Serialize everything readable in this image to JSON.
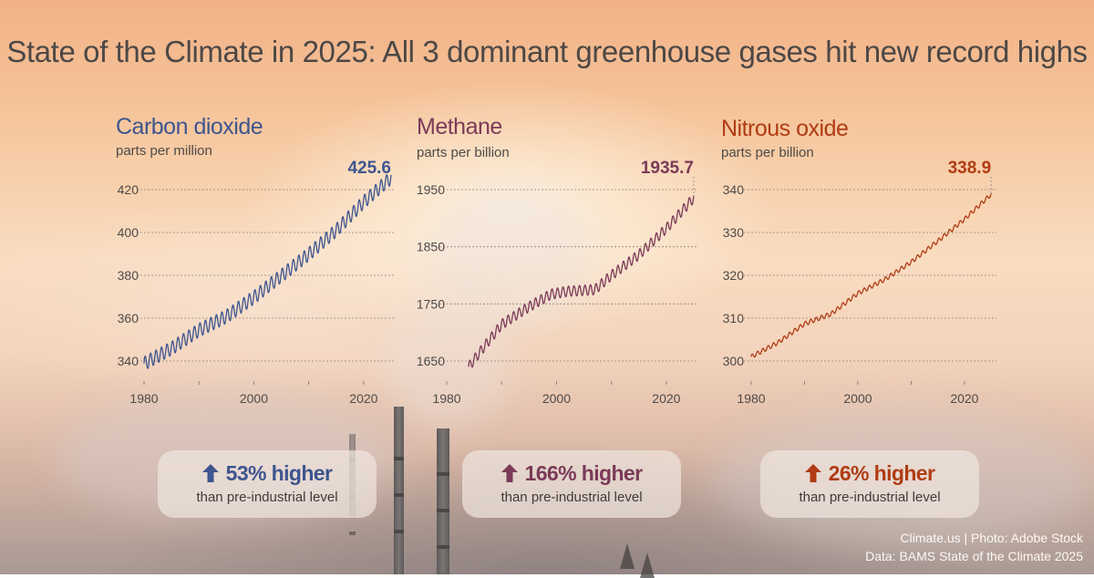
{
  "title": "State of the Climate in 2025: All 3 dominant greenhouse gases hit new record highs",
  "colors": {
    "co2": "#3e558f",
    "ch4": "#7b3a58",
    "n2o": "#b03c14",
    "grid": "#8a8480",
    "axis_text": "#4f4a48"
  },
  "chart_data": [
    {
      "type": "line",
      "title": "Carbon dioxide",
      "ylabel": "parts per million",
      "latest_label": "425.6",
      "xlim": [
        1980,
        2025.5
      ],
      "ylim": [
        336,
        428
      ],
      "xticks": [
        1980,
        2000,
        2020
      ],
      "yticks": [
        340,
        360,
        380,
        400,
        420
      ],
      "grid": true,
      "x": [
        1980,
        1985,
        1990,
        1995,
        2000,
        2005,
        2010,
        2015,
        2020,
        2025
      ],
      "y": [
        338.8,
        345.9,
        354.4,
        360.8,
        369.7,
        379.8,
        389.9,
        401.0,
        414.2,
        425.6
      ],
      "seasonal_amplitude": 3.2,
      "stats": {
        "direction": "up",
        "headline": "53% higher",
        "subtext": "than pre-industrial level",
        "icon": "up-arrow-icon"
      }
    },
    {
      "type": "line",
      "title": "Methane",
      "ylabel": "parts per billion",
      "latest_label": "1935.7",
      "xlim": [
        1980,
        2025.5
      ],
      "ylim": [
        1620,
        1975
      ],
      "xticks": [
        1980,
        2000,
        2020
      ],
      "yticks": [
        1650,
        1750,
        1850,
        1950
      ],
      "grid": true,
      "x": [
        1984,
        1986,
        1990,
        1995,
        1999,
        2002,
        2007,
        2010,
        2015,
        2020,
        2025
      ],
      "y": [
        1640,
        1665,
        1714,
        1745,
        1767,
        1772,
        1775,
        1800,
        1836,
        1882,
        1935.7
      ],
      "seasonal_amplitude": 9,
      "stats": {
        "direction": "up",
        "headline": "166% higher",
        "subtext": "than pre-industrial level",
        "icon": "up-arrow-icon"
      }
    },
    {
      "type": "line",
      "title": "Nitrous oxide",
      "ylabel": "parts per billion",
      "latest_label": "338.9",
      "xlim": [
        1980,
        2026
      ],
      "ylim": [
        297,
        342
      ],
      "xticks": [
        1980,
        2000,
        2020
      ],
      "yticks": [
        300,
        310,
        320,
        330,
        340
      ],
      "grid": true,
      "x": [
        1980,
        1985,
        1990,
        1995,
        2000,
        2005,
        2010,
        2015,
        2020,
        2025
      ],
      "y": [
        301.0,
        304.3,
        308.7,
        311.0,
        315.8,
        319.0,
        323.1,
        328.0,
        333.1,
        338.9
      ],
      "seasonal_amplitude": 0.5,
      "stats": {
        "direction": "up",
        "headline": "26% higher",
        "subtext": "than pre-industrial level",
        "icon": "up-arrow-icon"
      }
    }
  ],
  "credits": {
    "line1": "Climate.us | Photo: Adobe Stock",
    "line2": "Data: BAMS State of the Climate 2025"
  }
}
